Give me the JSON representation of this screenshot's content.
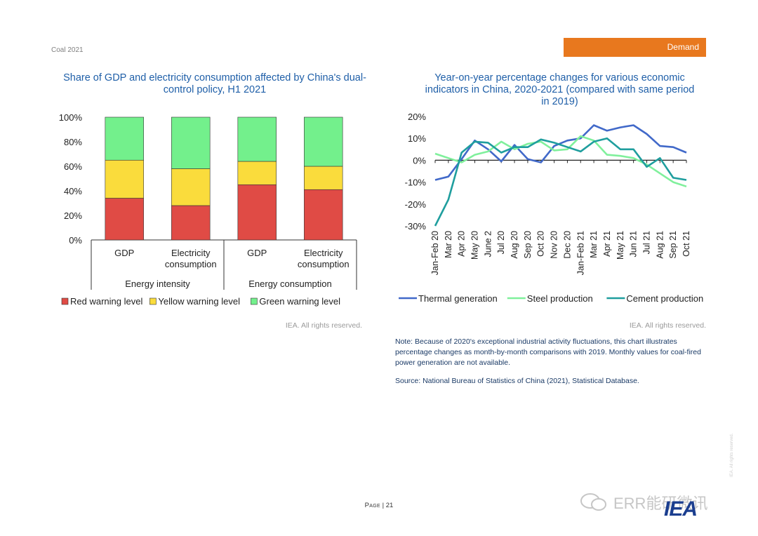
{
  "header": {
    "report": "Coal 2021",
    "section": "Demand"
  },
  "footer": {
    "page_label": "Page",
    "page_sep": " | ",
    "page_number": "21",
    "watermark": "ERR能研微讯",
    "logo": "IEA",
    "side_text": "IEA. All rights reserved."
  },
  "left_chart": {
    "credit": "IEA. All rights reserved."
  },
  "right_chart": {
    "credit": "IEA. All rights reserved.",
    "note": "Note: Because of 2020's exceptional industrial activity fluctuations, this chart illustrates percentage changes as month-by-month comparisons with 2019. Monthly values for coal-fired power generation are not available.",
    "source": "Source: National Bureau of Statistics of China (2021), Statistical Database."
  },
  "chart_data": [
    {
      "type": "bar",
      "stacked": true,
      "title": "Share of GDP and electricity consumption affected by China's dual-control policy, H1 2021",
      "categories": [
        "GDP",
        "Electricity consumption",
        "GDP",
        "Electricity consumption"
      ],
      "category_lines": [
        [
          "GDP"
        ],
        [
          "Electricity",
          "consumption"
        ],
        [
          "GDP"
        ],
        [
          "Electricity",
          "consumption"
        ]
      ],
      "groups": [
        {
          "label": "Energy intensity",
          "categories": [
            0,
            1
          ]
        },
        {
          "label": "Energy consumption",
          "categories": [
            2,
            3
          ]
        }
      ],
      "series": [
        {
          "name": "Red warning level",
          "color": "#e04b45",
          "values": [
            34,
            28,
            45,
            41
          ]
        },
        {
          "name": "Yellow warning level",
          "color": "#fadc3c",
          "values": [
            31,
            30,
            19,
            19
          ]
        },
        {
          "name": "Green warning level",
          "color": "#73f08c",
          "values": [
            35,
            42,
            36,
            40
          ]
        }
      ],
      "ylim": [
        0,
        100
      ],
      "yticks": [
        "0%",
        "20%",
        "40%",
        "60%",
        "80%",
        "100%"
      ],
      "legend": "bottom",
      "grid": false
    },
    {
      "type": "line",
      "title": "Year-on-year percentage changes for various economic indicators in China, 2020-2021 (compared with same period in 2019)",
      "title_lines": [
        "Year-on-year percentage changes for various economic",
        "indicators in China, 2020-2021 (compared with same period",
        "in 2019)"
      ],
      "x": [
        "Jan-Feb 20",
        "Mar 20",
        "Apr 20",
        "May 20",
        "June 2",
        "Jul 20",
        "Aug 20",
        "Sep 20",
        "Oct 20",
        "Nov 20",
        "Dec 20",
        "Jan-Feb 21",
        "Mar 21",
        "Apr 21",
        "May 21",
        "Jun 21",
        "Jul 21",
        "Aug 21",
        "Sep 21",
        "Oct 21"
      ],
      "series": [
        {
          "name": "Thermal generation",
          "color": "#4169c9",
          "values": [
            -9,
            -7.5,
            0.5,
            9,
            5,
            -0.5,
            7,
            0.5,
            -1,
            6.5,
            9,
            10,
            16,
            13.5,
            15,
            16,
            12,
            6.5,
            6,
            3.5
          ]
        },
        {
          "name": "Steel production",
          "color": "#80f09c",
          "values": [
            3,
            1,
            -1,
            2.5,
            4,
            8.5,
            5,
            7.5,
            8.5,
            4.5,
            5,
            11,
            9,
            2.5,
            2,
            1,
            -2,
            -6,
            -10,
            -12
          ]
        },
        {
          "name": "Cement production",
          "color": "#1f9e9e",
          "values": [
            -30,
            -18,
            3.5,
            8.5,
            8,
            3.5,
            6,
            6,
            9.5,
            8,
            6,
            4,
            8.5,
            10,
            5,
            5,
            -3,
            1,
            -8,
            -9
          ]
        }
      ],
      "ylim": [
        -30,
        20
      ],
      "yticks": [
        "-30%",
        "-20%",
        "-10%",
        "0%",
        "10%",
        "20%"
      ],
      "legend": "bottom",
      "grid": false
    }
  ]
}
